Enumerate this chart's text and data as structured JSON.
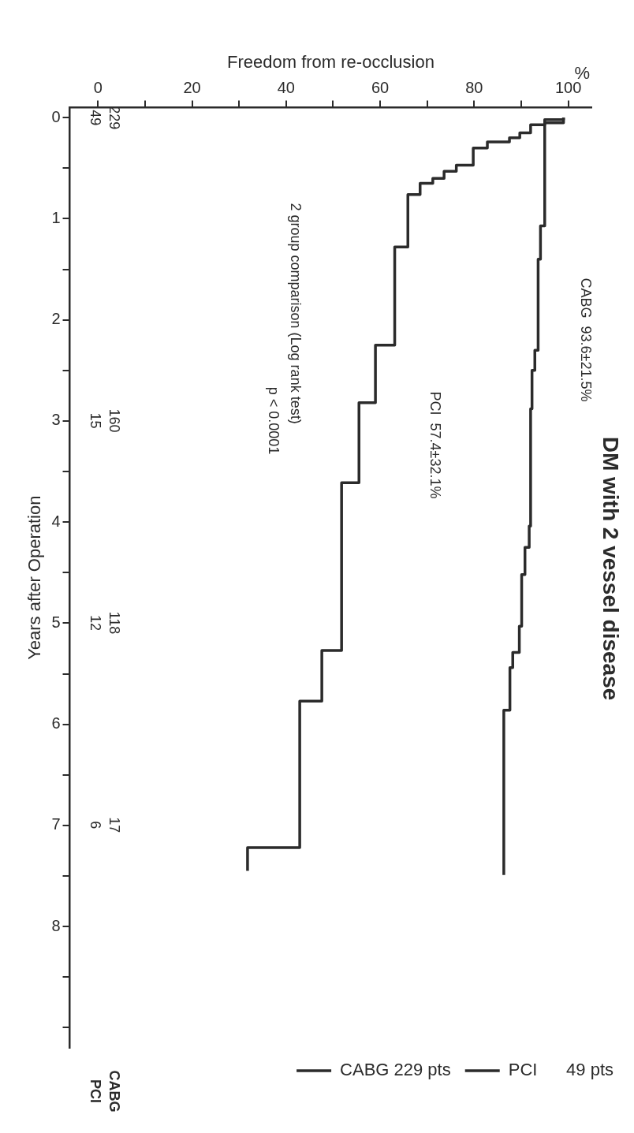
{
  "chart_data": {
    "type": "step",
    "title": "DM with 2 vessel disease",
    "xlabel": "Freedom from re-occlusion",
    "ylabel": "Years after Operation",
    "legend": "bottom right",
    "line_style": "solid",
    "xlim": [
      -6,
      105
    ],
    "ylim": [
      9.2,
      -0.1
    ],
    "xticks": [
      0,
      {
        "value": 10,
        "label": null
      },
      20,
      {
        "value": 30,
        "label": null
      },
      40,
      {
        "value": 50,
        "label": null
      },
      60,
      {
        "value": 70,
        "label": null
      },
      80,
      {
        "value": 90,
        "label": null
      },
      100
    ],
    "yticks": [
      0,
      {
        "value": 0.5,
        "label": null
      },
      1,
      {
        "value": 1.5,
        "label": null
      },
      2,
      {
        "value": 2.5,
        "label": null
      },
      3,
      {
        "value": 3.5,
        "label": null
      },
      4,
      {
        "value": 4.5,
        "label": null
      },
      5,
      {
        "value": 5.5,
        "label": null
      },
      6,
      {
        "value": 6.5,
        "label": null
      },
      7,
      {
        "value": 7.5,
        "label": null
      },
      8,
      {
        "value": 8.5,
        "label": null
      },
      {
        "value": 9,
        "label": null
      }
    ],
    "series": [
      {
        "name": "CABG 229 pts",
        "color": "#2b2b2b",
        "x": [
          99,
          95,
          94.1,
          93.6,
          92.9,
          92.3,
          92.0,
          91.7,
          90.8,
          90.1,
          89.6,
          88.2,
          87.6,
          86.3,
          86.3
        ],
        "values": [
          0,
          0.05,
          1.07,
          1.4,
          2.3,
          2.5,
          2.88,
          4.04,
          4.25,
          4.52,
          5.03,
          5.29,
          5.44,
          5.86,
          7.49
        ]
      },
      {
        "name": "PCI      49 pts",
        "color": "#2b2b2b",
        "x": [
          99,
          95,
          92,
          89.7,
          87.5,
          82.8,
          79.8,
          76.2,
          73.6,
          71.2,
          68.5,
          65.9,
          63.1,
          59,
          55.5,
          51.8,
          47.6,
          42.9,
          31.8,
          31.8
        ],
        "values": [
          0,
          0.02,
          0.07,
          0.15,
          0.2,
          0.24,
          0.3,
          0.47,
          0.53,
          0.6,
          0.65,
          0.76,
          1.28,
          2.25,
          2.82,
          3.61,
          5.27,
          5.77,
          7.22,
          7.45
        ]
      }
    ],
    "annotations": [
      "%",
      "CABG  93.6±21.5%",
      "PCI  57.4±32.1%",
      "2 group comparison (Log rank test)",
      "p < 0.0001",
      "229",
      "160",
      "118",
      "17",
      "49",
      "15",
      "12",
      "6",
      "CABG",
      "PCI"
    ]
  }
}
